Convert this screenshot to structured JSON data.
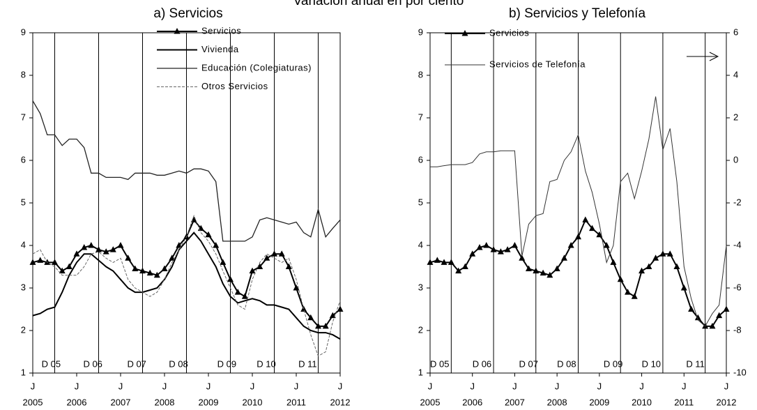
{
  "title": "Variación anual en por ciento",
  "chart_data": [
    {
      "type": "line",
      "title": "a) Servicios",
      "x": [
        2005,
        2005.17,
        2005.33,
        2005.5,
        2005.67,
        2005.83,
        2006,
        2006.17,
        2006.33,
        2006.5,
        2006.67,
        2006.83,
        2007,
        2007.17,
        2007.33,
        2007.5,
        2007.67,
        2007.83,
        2008,
        2008.17,
        2008.33,
        2008.5,
        2008.67,
        2008.83,
        2009,
        2009.17,
        2009.33,
        2009.5,
        2009.67,
        2009.83,
        2010,
        2010.17,
        2010.33,
        2010.5,
        2010.67,
        2010.83,
        2011,
        2011.17,
        2011.33,
        2011.5,
        2011.67,
        2011.83,
        2012
      ],
      "series": [
        {
          "name": "Servicios",
          "color": "#000000",
          "marker": "triangle",
          "width": 2,
          "values": [
            3.6,
            3.65,
            3.6,
            3.6,
            3.4,
            3.5,
            3.8,
            3.95,
            4.0,
            3.9,
            3.85,
            3.9,
            4.0,
            3.7,
            3.45,
            3.4,
            3.35,
            3.3,
            3.45,
            3.7,
            4.0,
            4.2,
            4.6,
            4.4,
            4.25,
            4.0,
            3.6,
            3.2,
            2.9,
            2.8,
            3.4,
            3.5,
            3.7,
            3.8,
            3.8,
            3.5,
            3.0,
            2.5,
            2.3,
            2.1,
            2.1,
            2.35,
            2.5
          ]
        },
        {
          "name": "Vivienda",
          "color": "#000000",
          "width": 2,
          "values": [
            2.35,
            2.4,
            2.5,
            2.55,
            2.9,
            3.3,
            3.6,
            3.8,
            3.8,
            3.65,
            3.5,
            3.4,
            3.2,
            3.0,
            2.9,
            2.9,
            2.95,
            3.0,
            3.2,
            3.5,
            3.9,
            4.1,
            4.3,
            4.1,
            3.8,
            3.5,
            3.1,
            2.8,
            2.65,
            2.7,
            2.75,
            2.7,
            2.6,
            2.6,
            2.55,
            2.5,
            2.3,
            2.1,
            2.0,
            1.95,
            1.95,
            1.9,
            1.8
          ]
        },
        {
          "name": "Educación (Colegiaturas)",
          "color": "#222222",
          "width": 1.3,
          "values": [
            7.4,
            7.1,
            6.6,
            6.6,
            6.35,
            6.5,
            6.5,
            6.3,
            5.7,
            5.7,
            5.6,
            5.6,
            5.6,
            5.55,
            5.7,
            5.7,
            5.7,
            5.65,
            5.65,
            5.7,
            5.75,
            5.7,
            5.8,
            5.8,
            5.75,
            5.5,
            4.1,
            4.1,
            4.1,
            4.1,
            4.2,
            4.6,
            4.65,
            4.6,
            4.55,
            4.5,
            4.55,
            4.3,
            4.2,
            4.85,
            4.2,
            4.4,
            4.6
          ]
        },
        {
          "name": "Otros Servicios",
          "color": "#666666",
          "width": 1,
          "dash": true,
          "values": [
            3.8,
            3.9,
            3.6,
            3.5,
            3.3,
            3.3,
            3.3,
            3.5,
            3.8,
            3.85,
            3.7,
            3.6,
            3.7,
            3.2,
            3.0,
            2.9,
            2.8,
            2.9,
            3.2,
            3.6,
            3.9,
            4.2,
            4.7,
            4.3,
            4.1,
            3.8,
            3.4,
            3.0,
            2.6,
            2.5,
            3.2,
            3.6,
            3.8,
            3.7,
            3.6,
            3.7,
            3.2,
            2.5,
            1.9,
            1.4,
            1.5,
            2.2,
            2.7
          ]
        }
      ],
      "xlim": [
        2005,
        2012
      ],
      "xticks": [
        2005,
        2006,
        2007,
        2008,
        2009,
        2010,
        2011,
        2012
      ],
      "xtick_prefix": "J",
      "ylim": [
        1,
        9
      ],
      "yticks": [
        1,
        2,
        3,
        4,
        5,
        6,
        7,
        8,
        9
      ],
      "vlines": [
        2005.5,
        2006.5,
        2007.5,
        2008.5,
        2009.5,
        2010.5,
        2011.5
      ],
      "period_labels": [
        {
          "x": 2005.2,
          "label": "D 05"
        },
        {
          "x": 2006.15,
          "label": "D 06"
        },
        {
          "x": 2007.15,
          "label": "D 07"
        },
        {
          "x": 2008.1,
          "label": "D 08"
        },
        {
          "x": 2009.2,
          "label": "D 09"
        },
        {
          "x": 2010.1,
          "label": "D 10"
        },
        {
          "x": 2011.05,
          "label": "D 11"
        }
      ]
    },
    {
      "type": "line",
      "title": "b) Servicios y Telefonía",
      "x": [
        2005,
        2005.17,
        2005.33,
        2005.5,
        2005.67,
        2005.83,
        2006,
        2006.17,
        2006.33,
        2006.5,
        2006.67,
        2006.83,
        2007,
        2007.17,
        2007.33,
        2007.5,
        2007.67,
        2007.83,
        2008,
        2008.17,
        2008.33,
        2008.5,
        2008.67,
        2008.83,
        2009,
        2009.17,
        2009.33,
        2009.5,
        2009.67,
        2009.83,
        2010,
        2010.17,
        2010.33,
        2010.5,
        2010.67,
        2010.83,
        2011,
        2011.17,
        2011.33,
        2011.5,
        2011.67,
        2011.83,
        2012
      ],
      "series": [
        {
          "name": "Servicios",
          "color": "#000000",
          "marker": "triangle",
          "width": 2,
          "values": [
            3.6,
            3.65,
            3.6,
            3.6,
            3.4,
            3.5,
            3.8,
            3.95,
            4.0,
            3.9,
            3.85,
            3.9,
            4.0,
            3.7,
            3.45,
            3.4,
            3.35,
            3.3,
            3.45,
            3.7,
            4.0,
            4.2,
            4.6,
            4.4,
            4.25,
            4.0,
            3.6,
            3.2,
            2.9,
            2.8,
            3.4,
            3.5,
            3.7,
            3.8,
            3.8,
            3.5,
            3.0,
            2.5,
            2.3,
            2.1,
            2.1,
            2.35,
            2.5
          ]
        },
        {
          "name": "Servicios de Telefonía",
          "color": "#333333",
          "width": 1,
          "axis": "y2",
          "values": [
            -0.3,
            -0.3,
            -0.25,
            -0.2,
            -0.2,
            -0.2,
            -0.1,
            0.3,
            0.4,
            0.4,
            0.45,
            0.45,
            0.45,
            -4.5,
            -3.0,
            -2.6,
            -2.5,
            -1.0,
            -0.9,
            0.0,
            0.4,
            1.2,
            -0.5,
            -1.5,
            -3.0,
            -4.8,
            -4.0,
            -1.0,
            -0.6,
            -1.8,
            -0.5,
            1.0,
            3.0,
            0.5,
            1.5,
            -1.0,
            -5.0,
            -6.5,
            -7.5,
            -7.8,
            -7.2,
            -6.8,
            -4.0
          ]
        }
      ],
      "xlim": [
        2005,
        2012
      ],
      "xticks": [
        2005,
        2006,
        2007,
        2008,
        2009,
        2010,
        2011,
        2012
      ],
      "xtick_prefix": "J",
      "ylim": [
        1,
        9
      ],
      "yticks": [
        1,
        2,
        3,
        4,
        5,
        6,
        7,
        8,
        9
      ],
      "y2lim": [
        -10,
        6
      ],
      "y2ticks": [
        -10,
        -8,
        -6,
        -4,
        -2,
        0,
        2,
        4,
        6
      ],
      "vlines": [
        2005.5,
        2006.5,
        2007.5,
        2008.5,
        2009.5,
        2010.5,
        2011.5
      ],
      "period_labels": [
        {
          "x": 2005.0,
          "label": "D 05"
        },
        {
          "x": 2006.0,
          "label": "D 06"
        },
        {
          "x": 2007.1,
          "label": "D 07"
        },
        {
          "x": 2008.0,
          "label": "D 08"
        },
        {
          "x": 2009.1,
          "label": "D 09"
        },
        {
          "x": 2010.0,
          "label": "D 10"
        },
        {
          "x": 2011.05,
          "label": "D 11"
        }
      ]
    }
  ]
}
